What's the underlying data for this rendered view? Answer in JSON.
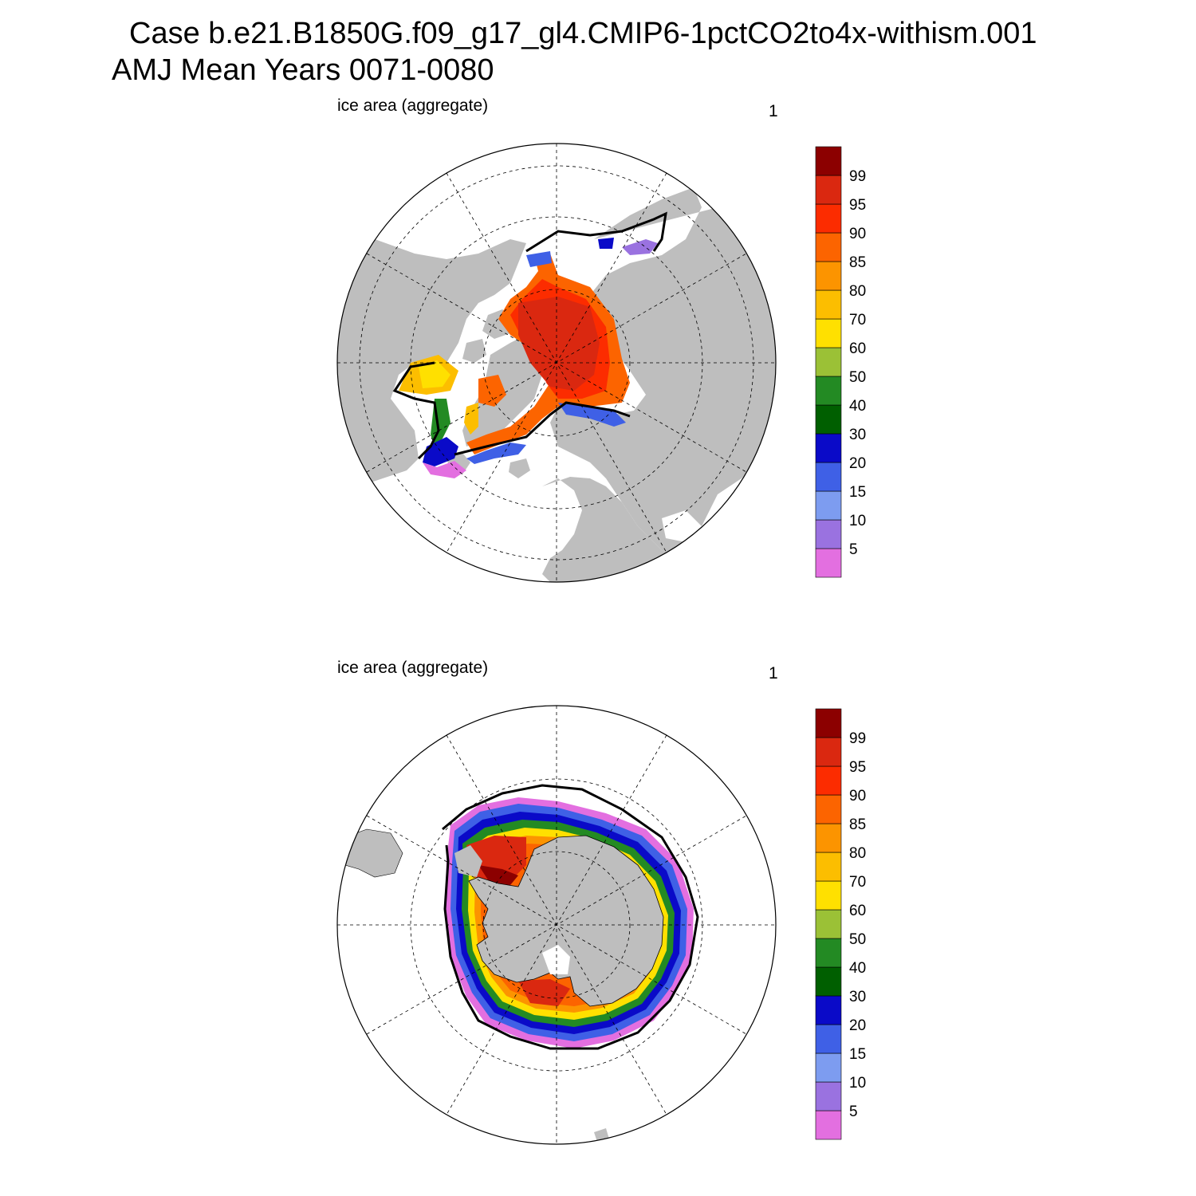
{
  "title": {
    "line1": "Case b.e21.B1850G.f09_g17_gl4.CMIP6-1pctCO2to4x-withism.001",
    "line2": "AMJ Mean   Years 0071-0080"
  },
  "panels": [
    {
      "id": "north",
      "left_label": "ice area  (aggregate)",
      "right_label": "1",
      "hemisphere": "Northern"
    },
    {
      "id": "south",
      "left_label": "ice area  (aggregate)",
      "right_label": "1",
      "hemisphere": "Southern"
    }
  ],
  "colorbar": {
    "levels": [
      "5",
      "10",
      "15",
      "20",
      "30",
      "40",
      "50",
      "60",
      "70",
      "80",
      "85",
      "90",
      "95",
      "99"
    ],
    "colors": [
      "#e36fe0",
      "#9a72e0",
      "#7d9cf0",
      "#3f60e6",
      "#0a0ac8",
      "#005f00",
      "#238a23",
      "#9bc136",
      "#ffe000",
      "#fcbe00",
      "#fc9400",
      "#fc6400",
      "#fc2c00",
      "#da2810",
      "#8c0000"
    ]
  },
  "map_colors": {
    "land": "#bebebe",
    "ocean": "#ffffff",
    "grid": "#000000"
  }
}
